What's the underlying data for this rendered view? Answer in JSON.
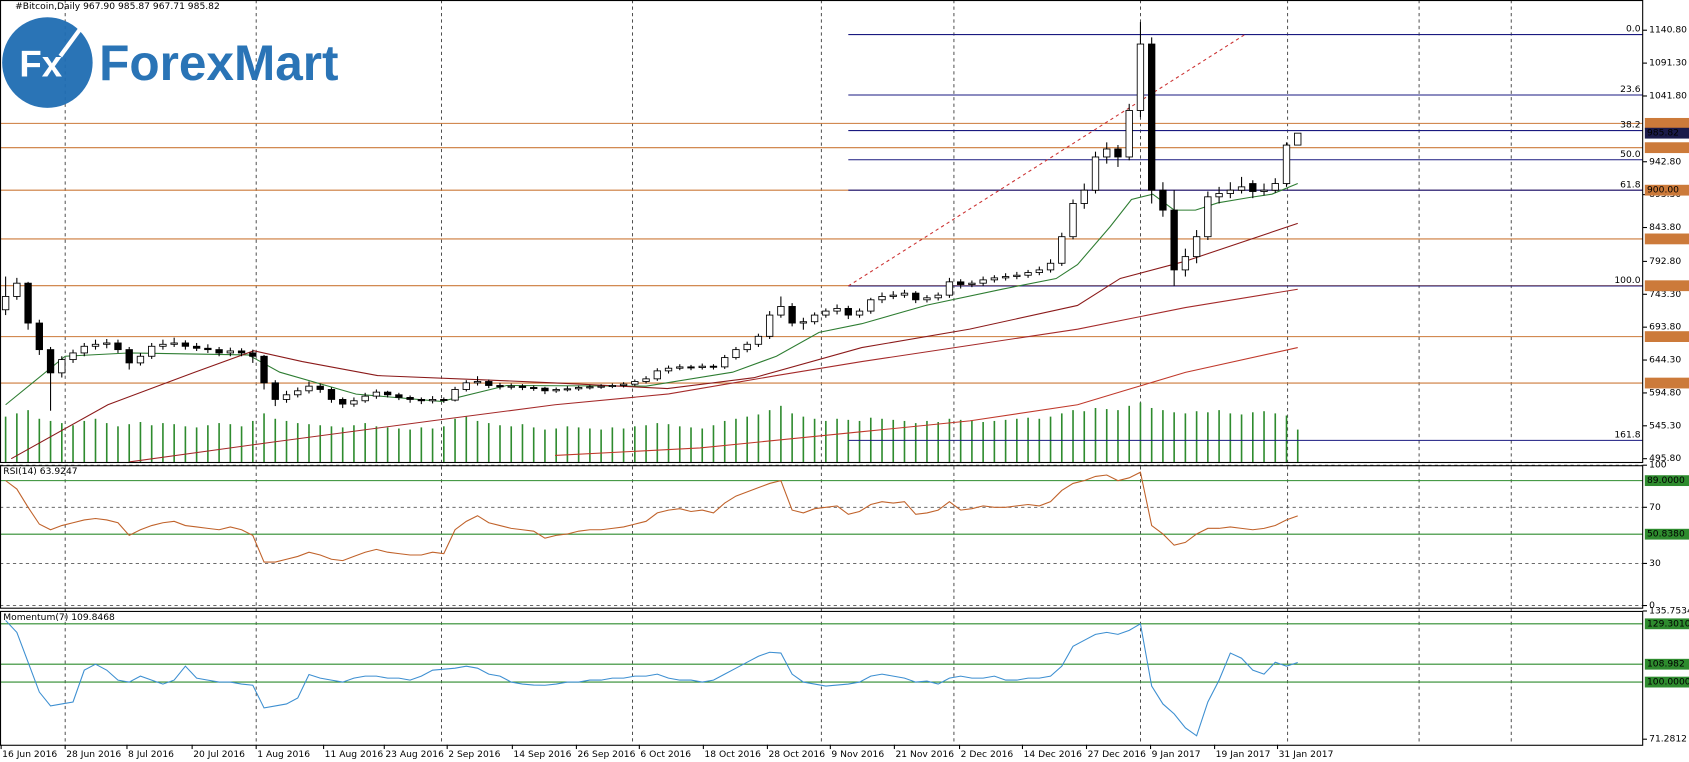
{
  "chart_data": {
    "type": "candlestick",
    "title": "#Bitcoin,Daily  967.90 985.87 967.71 985.82",
    "logo_icon": "Fx",
    "logo_text": "ForexMart",
    "xlim": [
      -0.5,
      145.7
    ],
    "xticks": [
      {
        "value": -0.4,
        "label": "16 Jun 2016"
      },
      {
        "value": 5.3,
        "label": "28 Jun 2016"
      },
      {
        "value": 10.8,
        "label": "8 Jul 2016"
      },
      {
        "value": 16.6,
        "label": "20 Jul 2016"
      },
      {
        "value": 22.3,
        "label": "1 Aug 2016"
      },
      {
        "value": 28.3,
        "label": "11 Aug 2016"
      },
      {
        "value": 33.7,
        "label": "23 Aug 2016"
      },
      {
        "value": 39.3,
        "label": "2 Sep 2016"
      },
      {
        "value": 45.1,
        "label": "14 Sep 2016"
      },
      {
        "value": 50.8,
        "label": "26 Sep 2016"
      },
      {
        "value": 56.4,
        "label": "6 Oct 2016"
      },
      {
        "value": 62.1,
        "label": "18 Oct 2016"
      },
      {
        "value": 67.8,
        "label": "28 Oct 2016"
      },
      {
        "value": 73.4,
        "label": "9 Nov 2016"
      },
      {
        "value": 79.1,
        "label": "21 Nov 2016"
      },
      {
        "value": 84.9,
        "label": "2 Dec 2016"
      },
      {
        "value": 90.5,
        "label": "14 Dec 2016"
      },
      {
        "value": 96.2,
        "label": "27 Dec 2016"
      },
      {
        "value": 101.9,
        "label": "9 Jan 2017"
      },
      {
        "value": 107.6,
        "label": "19 Jan 2017"
      },
      {
        "value": 113.2,
        "label": "31 Jan 2017"
      }
    ],
    "xgrid": [
      5.3,
      22.3,
      38.8,
      55.8,
      72.6,
      84.4,
      101,
      114.1,
      125.8,
      134
    ],
    "ylim": [
      490.9,
      1186.3
    ],
    "yticks": [
      {
        "value": 1140.8,
        "label": "1140.80"
      },
      {
        "value": 1091.3,
        "label": "1091.30"
      },
      {
        "value": 1041.8,
        "label": "1041.80"
      },
      {
        "value": 942.8,
        "label": "942.80"
      },
      {
        "value": 893.3,
        "label": "893.30"
      },
      {
        "value": 843.8,
        "label": "843.80"
      },
      {
        "value": 792.8,
        "label": "792.80"
      },
      {
        "value": 743.3,
        "label": "743.30"
      },
      {
        "value": 693.8,
        "label": "693.80"
      },
      {
        "value": 644.3,
        "label": "644.30"
      },
      {
        "value": 594.8,
        "label": "594.80"
      },
      {
        "value": 545.3,
        "label": "545.30"
      },
      {
        "value": 495.8,
        "label": "495.80"
      }
    ],
    "up_color": "#ffffff",
    "down_color": "#000000",
    "ohlc": [
      [
        720,
        770,
        712,
        740
      ],
      [
        740,
        768,
        735,
        760
      ],
      [
        760,
        762,
        690,
        700
      ],
      [
        700,
        705,
        652,
        660
      ],
      [
        660,
        664,
        568,
        625
      ],
      [
        625,
        650,
        618,
        645
      ],
      [
        645,
        660,
        640,
        655
      ],
      [
        655,
        670,
        650,
        665
      ],
      [
        665,
        675,
        660,
        668
      ],
      [
        668,
        676,
        662,
        670
      ],
      [
        670,
        675,
        655,
        660
      ],
      [
        660,
        664,
        630,
        640
      ],
      [
        640,
        655,
        636,
        650
      ],
      [
        650,
        670,
        646,
        665
      ],
      [
        665,
        675,
        660,
        668
      ],
      [
        668,
        678,
        664,
        670
      ],
      [
        670,
        674,
        660,
        665
      ],
      [
        665,
        670,
        658,
        662
      ],
      [
        662,
        668,
        655,
        660
      ],
      [
        660,
        664,
        650,
        655
      ],
      [
        655,
        663,
        650,
        658
      ],
      [
        658,
        662,
        650,
        655
      ],
      [
        655,
        660,
        640,
        650
      ],
      [
        650,
        652,
        600,
        610
      ],
      [
        610,
        614,
        575,
        585
      ],
      [
        585,
        598,
        580,
        592
      ],
      [
        592,
        603,
        588,
        598
      ],
      [
        598,
        612,
        594,
        605
      ],
      [
        605,
        609,
        595,
        600
      ],
      [
        600,
        603,
        580,
        585
      ],
      [
        585,
        588,
        572,
        578
      ],
      [
        578,
        588,
        574,
        583
      ],
      [
        583,
        595,
        580,
        590
      ],
      [
        590,
        600,
        586,
        596
      ],
      [
        596,
        598,
        588,
        592
      ],
      [
        592,
        595,
        584,
        588
      ],
      [
        588,
        591,
        580,
        585
      ],
      [
        585,
        588,
        578,
        583
      ],
      [
        583,
        590,
        579,
        585
      ],
      [
        585,
        588,
        580,
        584
      ],
      [
        584,
        604,
        582,
        600
      ],
      [
        600,
        614,
        597,
        610
      ],
      [
        610,
        620,
        606,
        612
      ],
      [
        612,
        615,
        602,
        606
      ],
      [
        606,
        610,
        600,
        604
      ],
      [
        604,
        609,
        600,
        605
      ],
      [
        605,
        608,
        599,
        603
      ],
      [
        603,
        606,
        598,
        602
      ],
      [
        602,
        604,
        593,
        598
      ],
      [
        598,
        603,
        595,
        600
      ],
      [
        600,
        605,
        597,
        601
      ],
      [
        601,
        606,
        598,
        603
      ],
      [
        603,
        607,
        600,
        604
      ],
      [
        604,
        608,
        601,
        605
      ],
      [
        605,
        609,
        602,
        606
      ],
      [
        606,
        611,
        603,
        608
      ],
      [
        608,
        615,
        605,
        612
      ],
      [
        612,
        620,
        609,
        616
      ],
      [
        616,
        632,
        613,
        628
      ],
      [
        628,
        636,
        624,
        632
      ],
      [
        632,
        638,
        629,
        634
      ],
      [
        634,
        637,
        629,
        633
      ],
      [
        633,
        639,
        630,
        635
      ],
      [
        635,
        638,
        630,
        634
      ],
      [
        634,
        652,
        631,
        648
      ],
      [
        648,
        664,
        645,
        660
      ],
      [
        660,
        672,
        656,
        668
      ],
      [
        668,
        684,
        664,
        680
      ],
      [
        680,
        718,
        676,
        712
      ],
      [
        712,
        740,
        708,
        725
      ],
      [
        725,
        730,
        695,
        700
      ],
      [
        700,
        708,
        690,
        702
      ],
      [
        702,
        716,
        698,
        712
      ],
      [
        712,
        722,
        708,
        718
      ],
      [
        718,
        728,
        713,
        722
      ],
      [
        722,
        726,
        706,
        712
      ],
      [
        712,
        722,
        708,
        718
      ],
      [
        718,
        738,
        714,
        735
      ],
      [
        735,
        746,
        730,
        740
      ],
      [
        740,
        748,
        736,
        742
      ],
      [
        742,
        750,
        738,
        745
      ],
      [
        745,
        748,
        730,
        735
      ],
      [
        735,
        742,
        731,
        738
      ],
      [
        738,
        746,
        734,
        742
      ],
      [
        742,
        768,
        738,
        762
      ],
      [
        762,
        766,
        752,
        758
      ],
      [
        758,
        764,
        754,
        760
      ],
      [
        760,
        770,
        756,
        765
      ],
      [
        765,
        772,
        761,
        768
      ],
      [
        768,
        775,
        764,
        770
      ],
      [
        770,
        777,
        766,
        772
      ],
      [
        772,
        780,
        768,
        776
      ],
      [
        776,
        785,
        772,
        780
      ],
      [
        780,
        796,
        776,
        790
      ],
      [
        790,
        836,
        786,
        830
      ],
      [
        830,
        886,
        826,
        880
      ],
      [
        880,
        910,
        872,
        900
      ],
      [
        900,
        958,
        895,
        950
      ],
      [
        950,
        972,
        940,
        962
      ],
      [
        962,
        968,
        935,
        950
      ],
      [
        950,
        1030,
        945,
        1020
      ],
      [
        1020,
        1153,
        1010,
        1120
      ],
      [
        1120,
        1130,
        880,
        900
      ],
      [
        900,
        912,
        860,
        870
      ],
      [
        870,
        900,
        756,
        780
      ],
      [
        780,
        812,
        770,
        800
      ],
      [
        800,
        840,
        790,
        830
      ],
      [
        830,
        898,
        825,
        890
      ],
      [
        890,
        905,
        880,
        895
      ],
      [
        895,
        912,
        888,
        900
      ],
      [
        900,
        920,
        895,
        905
      ],
      [
        910,
        915,
        888,
        898
      ],
      [
        898,
        910,
        892,
        900
      ],
      [
        900,
        918,
        896,
        910
      ],
      [
        910,
        972,
        905,
        967.9
      ],
      [
        967.9,
        985.87,
        967.71,
        985.82
      ]
    ],
    "volume": {
      "color": "#2e8b2e",
      "values": [
        42,
        45,
        48,
        40,
        38,
        36,
        34,
        38,
        40,
        36,
        33,
        35,
        37,
        34,
        36,
        35,
        33,
        32,
        34,
        36,
        35,
        33,
        38,
        45,
        40,
        38,
        36,
        35,
        34,
        33,
        32,
        34,
        36,
        33,
        32,
        31,
        30,
        32,
        31,
        33,
        40,
        42,
        38,
        36,
        34,
        33,
        35,
        32,
        30,
        31,
        33,
        32,
        31,
        30,
        32,
        31,
        33,
        34,
        36,
        35,
        33,
        32,
        31,
        34,
        38,
        40,
        42,
        44,
        48,
        52,
        45,
        42,
        40,
        38,
        40,
        39,
        38,
        41,
        40,
        39,
        38,
        36,
        38,
        37,
        40,
        39,
        38,
        37,
        38,
        39,
        40,
        41,
        40,
        42,
        45,
        48,
        47,
        50,
        49,
        48,
        52,
        55,
        50,
        48,
        46,
        45,
        47,
        46,
        48,
        45,
        44,
        46,
        47,
        45,
        43,
        30
      ]
    },
    "moving_averages": [
      {
        "color": "#2e7d32",
        "x": [
          0,
          5.3,
          11,
          21.6,
          24.4,
          31.2,
          38.8,
          44.6,
          57,
          64.7,
          68.6,
          72.4,
          76.2,
          82,
          88.7,
          93.5,
          95.4,
          98.3,
          100.2,
          102.1,
          104,
          105.9,
          107.9,
          110.7,
          112.7,
          115
        ],
        "values": [
          577,
          650,
          655,
          652,
          626,
          593,
          582,
          606,
          605,
          626,
          650,
          686,
          699,
          727,
          751,
          767,
          788,
          845,
          886,
          894,
          870,
          870,
          881,
          889,
          894,
          910
        ]
      },
      {
        "color": "#8b1a1a",
        "x": [
          0.5,
          9.1,
          16.8,
          22.1,
          26.4,
          33.1,
          42.7,
          49.4,
          58.9,
          66.6,
          76.2,
          85.8,
          95.4,
          99.2,
          105,
          115
        ],
        "values": [
          495.8,
          577,
          625.8,
          658.3,
          642,
          620.9,
          614.4,
          609.5,
          601.4,
          617.7,
          663.1,
          690.8,
          726.5,
          767.1,
          793.1,
          850
        ]
      },
      {
        "color": "#a52a2a",
        "x": [
          11,
          23.5,
          37.9,
          48.9,
          59,
          68.6,
          76.2,
          85.8,
          95.4,
          100.2,
          105,
          115
        ],
        "values": [
          490.9,
          520.2,
          552.7,
          577,
          593.3,
          620.9,
          642,
          666.4,
          690.8,
          707,
          723.3,
          750.9
        ]
      },
      {
        "color": "#c0392b",
        "x": [
          48.9,
          61.8,
          76.2,
          85.8,
          95.4,
          100.2,
          105,
          115
        ],
        "values": [
          500.7,
          512,
          536.4,
          552.7,
          577,
          601.4,
          625.8,
          663.1
        ]
      }
    ],
    "levels": [
      {
        "value": 1000.59,
        "color": "#cc7a3a"
      },
      {
        "value": 964.01,
        "color": "#cc7a3a"
      },
      {
        "value": 900,
        "label": "900.00",
        "color": "#cc7a3a"
      },
      {
        "value": 826.66,
        "color": "#cc7a3a"
      },
      {
        "value": 756.18,
        "color": "#cc7a3a"
      },
      {
        "value": 679.59,
        "color": "#cc7a3a"
      },
      {
        "value": 609.66,
        "color": "#cc7a3a"
      }
    ],
    "last_price": {
      "value": 985.82,
      "color": "#1a1a4a"
    },
    "fib": {
      "color": "#1a1a80",
      "x_start": 75,
      "trend_x": [
        75,
        110.3
      ],
      "trend_color": "#cc3333",
      "levels": [
        {
          "name": "0.0",
          "price": 1134.3
        },
        {
          "name": "23.6",
          "price": 1043.3
        },
        {
          "name": "38.2",
          "price": 989.7
        },
        {
          "name": "50.0",
          "price": 945.8
        },
        {
          "name": "61.8",
          "price": 900.0
        },
        {
          "name": "100.0",
          "price": 755.8
        },
        {
          "name": "161.8",
          "price": 523.4
        }
      ]
    },
    "rsi": {
      "title": "RSI(14) 63.9247",
      "color": "#c0622a",
      "ylim": [
        -1.5,
        100
      ],
      "yticks": [
        100,
        70,
        30,
        0
      ],
      "levels": [
        {
          "value": 89,
          "label": "89.0000",
          "color": "#2e8b2e"
        },
        {
          "value": 50.838,
          "label": "50.8380",
          "color": "#2e8b2e"
        }
      ],
      "values": [
        89,
        83,
        70,
        58,
        54,
        57,
        59,
        61,
        62,
        61,
        59,
        50,
        54,
        57,
        59,
        60,
        57,
        56,
        55,
        54,
        56,
        54,
        50,
        31,
        31,
        33,
        35,
        38,
        36,
        33,
        32,
        35,
        38,
        40,
        38,
        37,
        36,
        36,
        38,
        37,
        54,
        60,
        64,
        59,
        57,
        55,
        54,
        53,
        48,
        50,
        51,
        53,
        54,
        54,
        55,
        56,
        58,
        60,
        66,
        68,
        69,
        67,
        68,
        66,
        73,
        78,
        81,
        84,
        87,
        89,
        68,
        66,
        69,
        70,
        71,
        65,
        67,
        72,
        74,
        73,
        74,
        65,
        66,
        68,
        74,
        68,
        69,
        71,
        70,
        70,
        71,
        72,
        71,
        74,
        82,
        87,
        89,
        92,
        93,
        89,
        91,
        95,
        57,
        51,
        43,
        45,
        51,
        55,
        55,
        56,
        55,
        54,
        55,
        57,
        61,
        63.92
      ]
    },
    "momentum": {
      "title": "Momentum(7) 109.8468",
      "color": "#3d8fd1",
      "ylim": [
        68.5,
        135.8
      ],
      "yticks": [
        135.7534,
        71.2812
      ],
      "levels": [
        {
          "value": 129.301,
          "label": "129.3010",
          "color": "#2e8b2e"
        },
        {
          "value": 108.982,
          "label": "108.982",
          "color": "#2e8b2e"
        },
        {
          "value": 100,
          "label": "100.0000",
          "color": "#2e8b2e"
        }
      ],
      "values": [
        131,
        125,
        110,
        95,
        88,
        89,
        90,
        106,
        109,
        106,
        101,
        100,
        103,
        101,
        99,
        101,
        108,
        102,
        101,
        100,
        100,
        99,
        98.4,
        87,
        88,
        89,
        92,
        103.8,
        102,
        101,
        100,
        102,
        103,
        103,
        102,
        102,
        101,
        103,
        106,
        106.5,
        107,
        108,
        107,
        104,
        103,
        100,
        99,
        98.5,
        98.4,
        99,
        100,
        100,
        101,
        101,
        102,
        102,
        103,
        103,
        104,
        102,
        101,
        101,
        100,
        101,
        104,
        107,
        110,
        113,
        115,
        114.6,
        104,
        100,
        99,
        98,
        98.5,
        99,
        100,
        103,
        104,
        103,
        102,
        100,
        100.5,
        99,
        102,
        103,
        102,
        102,
        103,
        101,
        101,
        102,
        102,
        103,
        108,
        118,
        121,
        124,
        125,
        124,
        126,
        129.3,
        98,
        89,
        84,
        77,
        73,
        90,
        101,
        114.6,
        112,
        106,
        104,
        110,
        108,
        109.85
      ]
    }
  }
}
